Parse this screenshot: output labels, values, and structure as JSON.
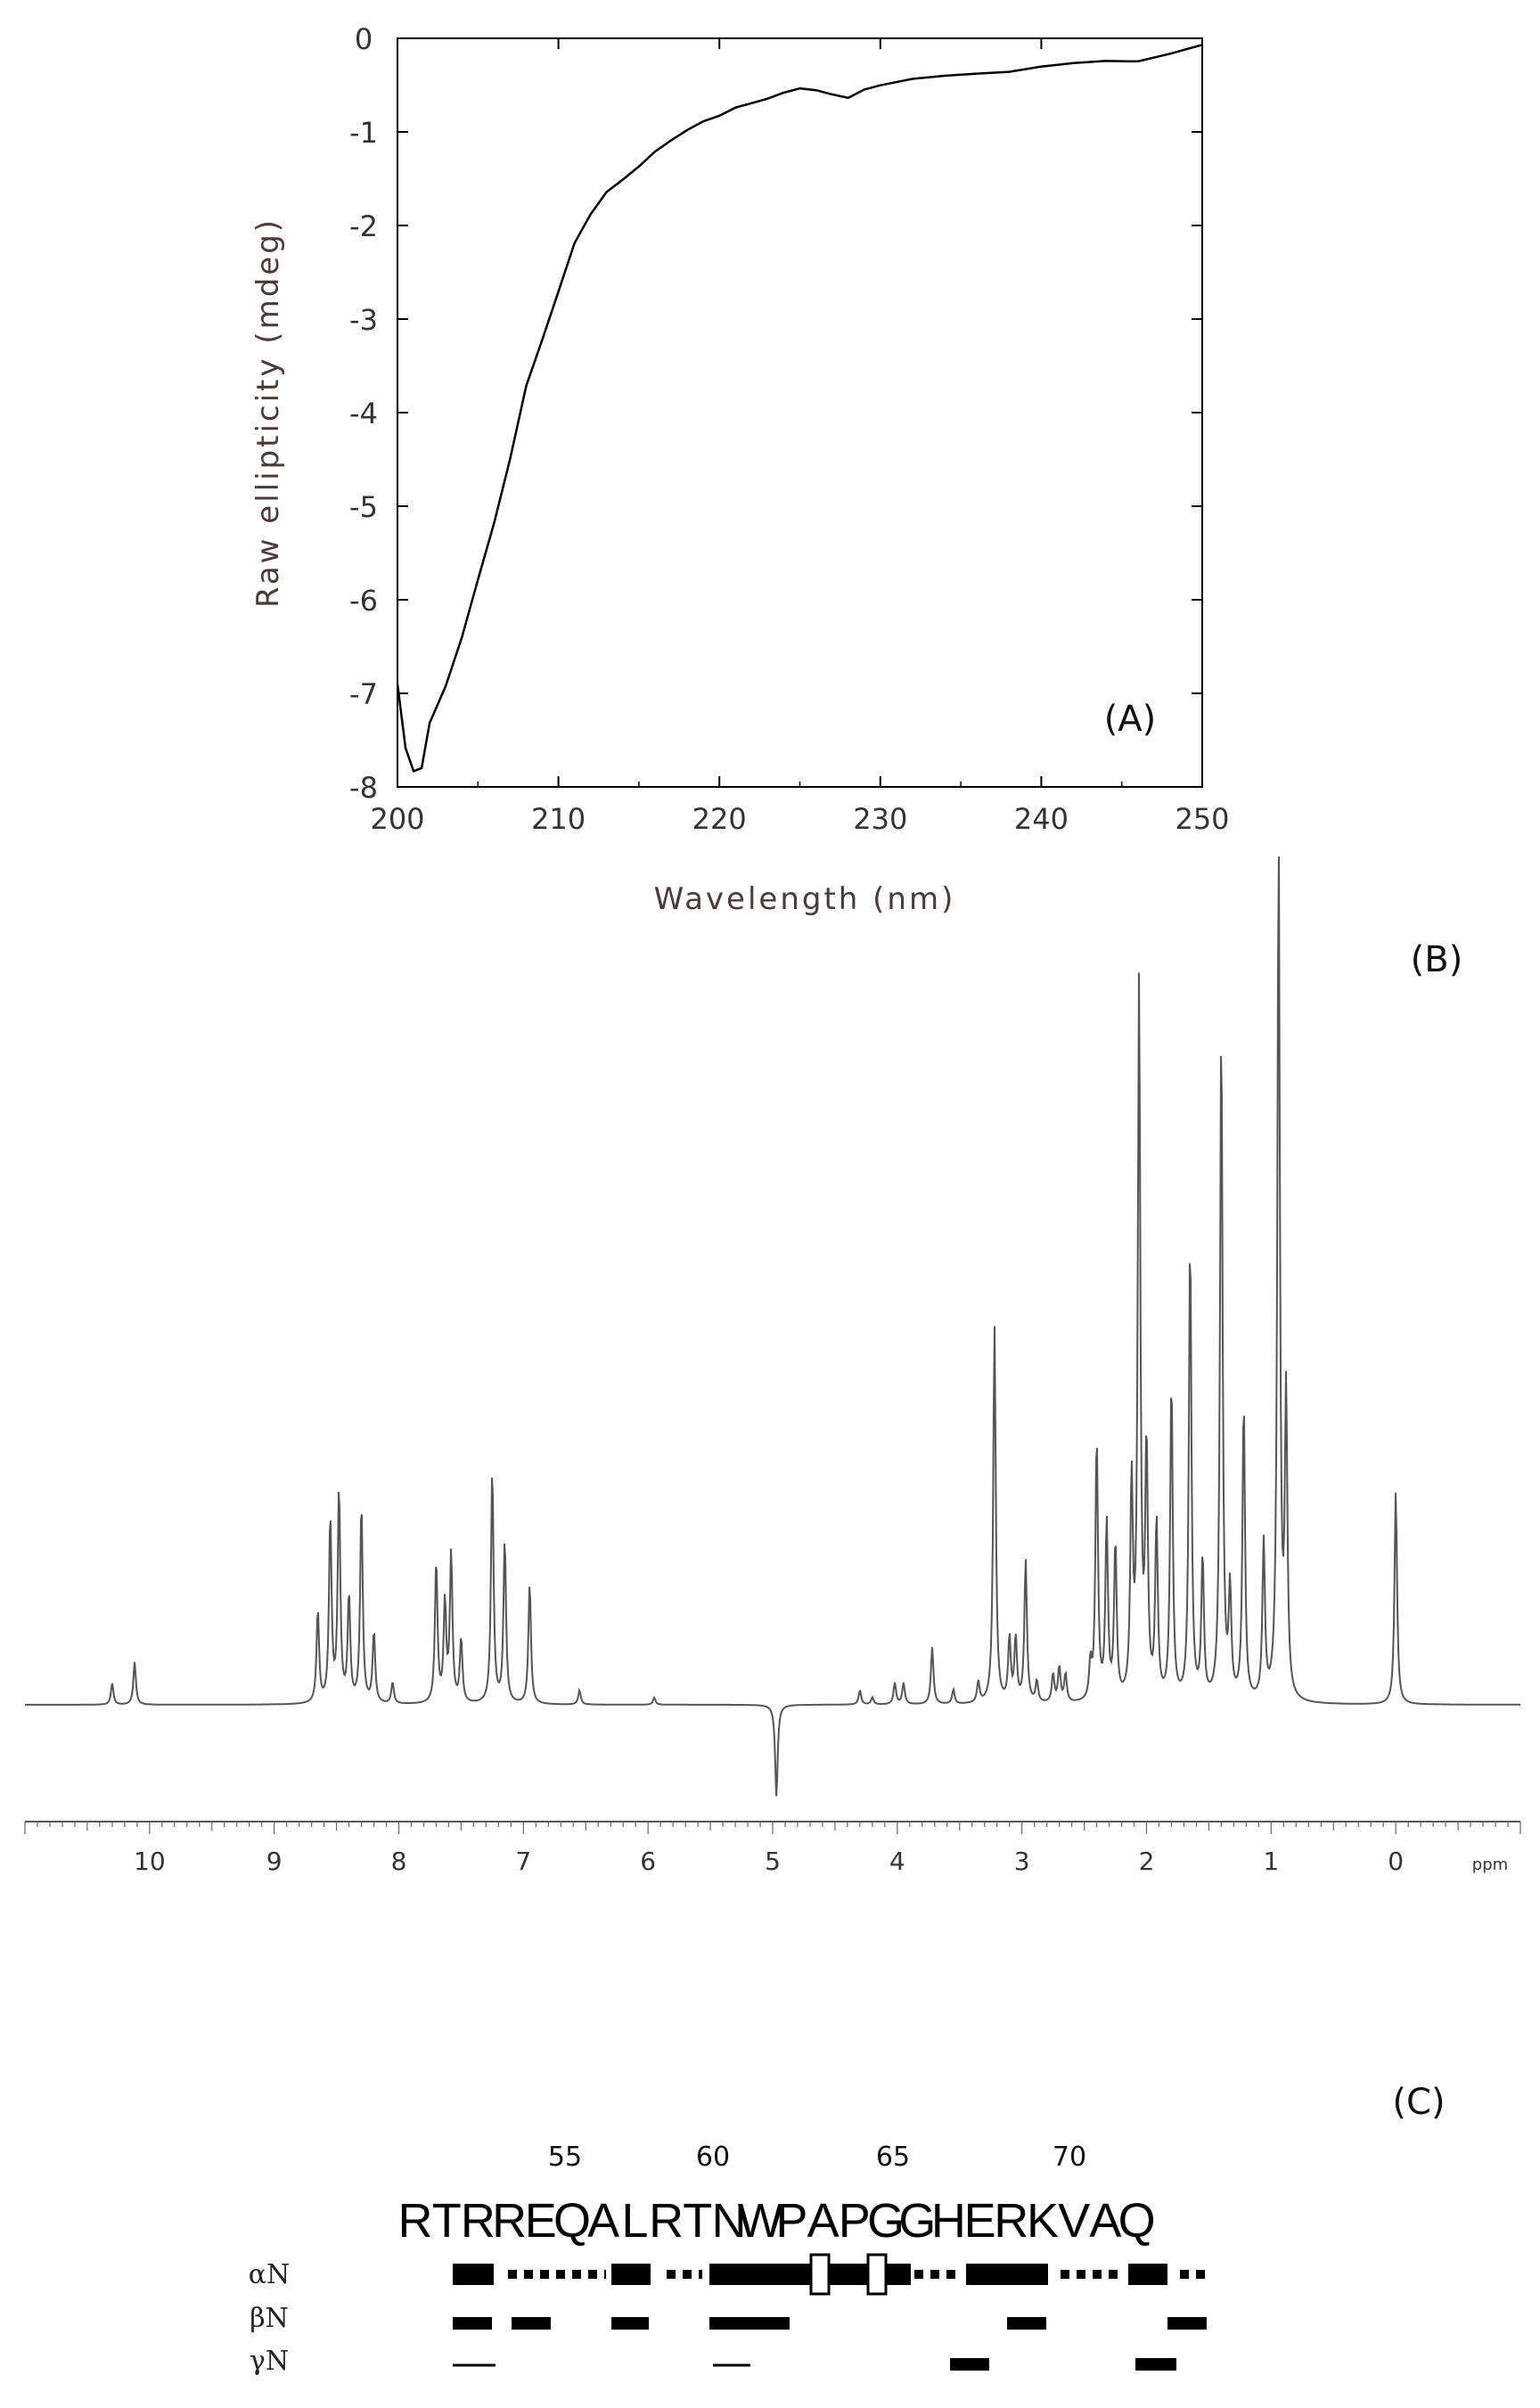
{
  "chart_data": [
    {
      "type": "line",
      "panel_label": "(A)",
      "xlabel": "Wavelength (nm)",
      "ylabel": "Raw ellipticity (mdeg)",
      "xlim": [
        200,
        250
      ],
      "ylim": [
        -8,
        0
      ],
      "xticks": [
        "200",
        "210",
        "220",
        "230",
        "240",
        "250"
      ],
      "yticks": [
        "0",
        "-1",
        "-2",
        "-3",
        "-4",
        "-5",
        "-6",
        "-7",
        "-8"
      ],
      "series": [
        {
          "x": [
            200,
            200.5,
            201,
            201.5,
            202,
            203,
            204,
            205,
            206,
            207,
            208,
            209,
            210,
            211,
            212,
            213,
            214,
            215,
            216,
            217,
            218,
            219,
            220,
            221,
            222,
            223,
            224,
            225,
            226,
            227,
            228,
            229,
            230,
            232,
            234,
            236,
            238,
            240,
            242,
            244,
            246,
            248,
            250
          ],
          "y": [
            -6.9,
            -7.6,
            -7.85,
            -7.8,
            -7.3,
            -6.9,
            -6.4,
            -5.8,
            -5.2,
            -4.5,
            -3.7,
            -3.2,
            -2.7,
            -2.2,
            -1.9,
            -1.65,
            -1.5,
            -1.35,
            -1.2,
            -1.1,
            -1.0,
            -0.9,
            -0.82,
            -0.72,
            -0.68,
            -0.65,
            -0.6,
            -0.55,
            -0.55,
            -0.58,
            -0.62,
            -0.55,
            -0.52,
            -0.45,
            -0.4,
            -0.36,
            -0.34,
            -0.3,
            -0.28,
            -0.26,
            -0.25,
            -0.15,
            -0.05
          ]
        }
      ]
    },
    {
      "type": "line",
      "panel_label": "(B)",
      "x_unit": "ppm",
      "xlim": [
        11.0,
        -1.0
      ],
      "xticks": [
        "10",
        "9",
        "8",
        "7",
        "6",
        "5",
        "4",
        "3",
        "2",
        "1",
        "0"
      ],
      "peaks": [
        {
          "ppm": 10.3,
          "h": 0.03
        },
        {
          "ppm": 10.12,
          "h": 0.06
        },
        {
          "ppm": 8.65,
          "h": 0.13
        },
        {
          "ppm": 8.55,
          "h": 0.26
        },
        {
          "ppm": 8.48,
          "h": 0.3
        },
        {
          "ppm": 8.4,
          "h": 0.15
        },
        {
          "ppm": 8.3,
          "h": 0.28
        },
        {
          "ppm": 8.2,
          "h": 0.1
        },
        {
          "ppm": 8.05,
          "h": 0.03
        },
        {
          "ppm": 7.7,
          "h": 0.2
        },
        {
          "ppm": 7.63,
          "h": 0.14
        },
        {
          "ppm": 7.58,
          "h": 0.21
        },
        {
          "ppm": 7.5,
          "h": 0.09
        },
        {
          "ppm": 7.25,
          "h": 0.33
        },
        {
          "ppm": 7.15,
          "h": 0.23
        },
        {
          "ppm": 6.95,
          "h": 0.17
        },
        {
          "ppm": 6.55,
          "h": 0.02
        },
        {
          "ppm": 5.95,
          "h": 0.01
        },
        {
          "ppm": 4.97,
          "h": -0.13
        },
        {
          "ppm": 4.3,
          "h": 0.02
        },
        {
          "ppm": 4.2,
          "h": 0.01
        },
        {
          "ppm": 4.02,
          "h": 0.03
        },
        {
          "ppm": 3.95,
          "h": 0.03
        },
        {
          "ppm": 3.72,
          "h": 0.08
        },
        {
          "ppm": 3.55,
          "h": 0.02
        },
        {
          "ppm": 3.35,
          "h": 0.03
        },
        {
          "ppm": 3.22,
          "h": 0.53
        },
        {
          "ppm": 3.1,
          "h": 0.09
        },
        {
          "ppm": 3.05,
          "h": 0.09
        },
        {
          "ppm": 2.97,
          "h": 0.2
        },
        {
          "ppm": 2.88,
          "h": 0.03
        },
        {
          "ppm": 2.75,
          "h": 0.04
        },
        {
          "ppm": 2.7,
          "h": 0.05
        },
        {
          "ppm": 2.65,
          "h": 0.04
        },
        {
          "ppm": 2.45,
          "h": 0.05
        },
        {
          "ppm": 2.4,
          "h": 0.37
        },
        {
          "ppm": 2.32,
          "h": 0.25
        },
        {
          "ppm": 2.25,
          "h": 0.22
        },
        {
          "ppm": 2.12,
          "h": 0.3
        },
        {
          "ppm": 2.06,
          "h": 1.0
        },
        {
          "ppm": 2.0,
          "h": 0.35
        },
        {
          "ppm": 1.92,
          "h": 0.25
        },
        {
          "ppm": 1.8,
          "h": 0.45
        },
        {
          "ppm": 1.65,
          "h": 0.65
        },
        {
          "ppm": 1.55,
          "h": 0.2
        },
        {
          "ppm": 1.4,
          "h": 0.95
        },
        {
          "ppm": 1.33,
          "h": 0.15
        },
        {
          "ppm": 1.22,
          "h": 0.42
        },
        {
          "ppm": 1.06,
          "h": 0.22
        },
        {
          "ppm": 0.94,
          "h": 1.2
        },
        {
          "ppm": 0.88,
          "h": 0.42
        },
        {
          "ppm": 0.0,
          "h": 0.3
        }
      ]
    }
  ],
  "panel_c": {
    "label": "(C)",
    "numbers": [
      "55",
      "60",
      "65",
      "70"
    ],
    "sequence": [
      "R",
      "T",
      "R",
      "R",
      "E",
      "Q",
      "A",
      "L",
      "R",
      "T",
      "N",
      "W",
      "P",
      "A",
      "P",
      "G",
      "G",
      "H",
      "E",
      "R",
      "K",
      "V",
      "A",
      "Q"
    ],
    "row_labels": [
      "αN",
      "βN",
      "γN"
    ]
  }
}
